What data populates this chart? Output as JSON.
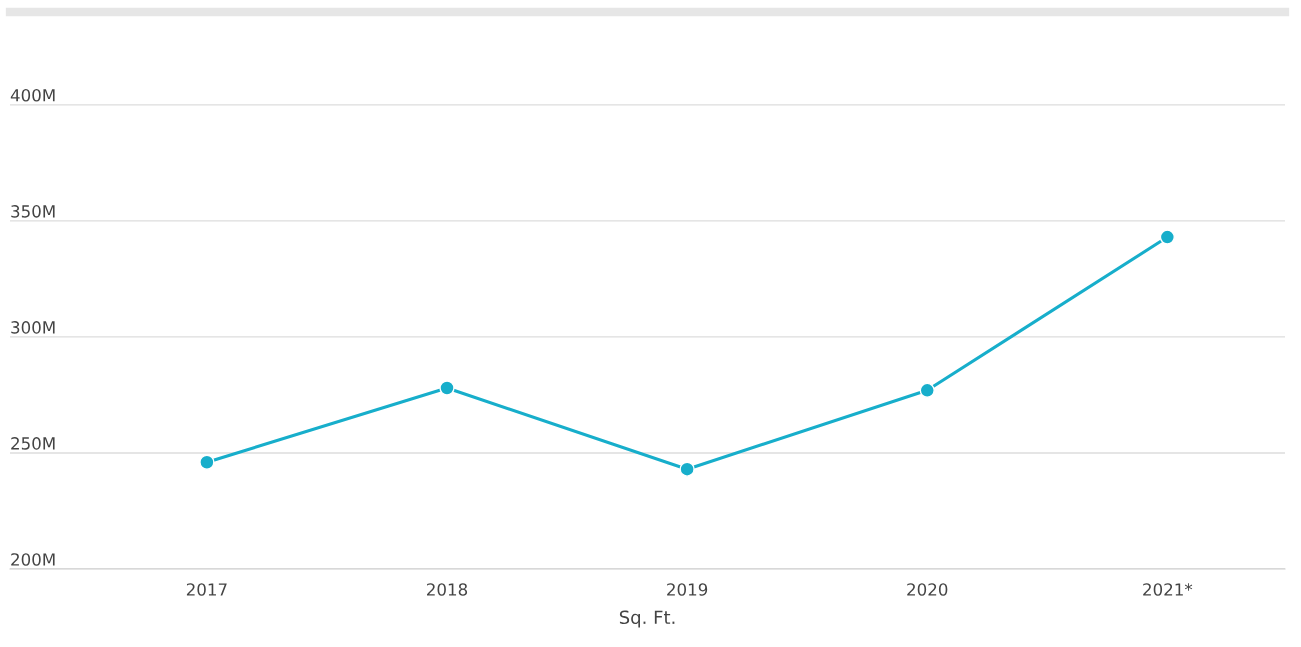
{
  "chart_data": {
    "type": "line",
    "xlabel": "Sq. Ft.",
    "categories": [
      "2017",
      "2018",
      "2019",
      "2020",
      "2021*"
    ],
    "series": [
      {
        "color": "#17aecb",
        "values": [
          246,
          278,
          243,
          277,
          343
        ]
      }
    ],
    "ylim": [
      200,
      440
    ],
    "yticks": [
      {
        "value": 200,
        "label": "200M"
      },
      {
        "value": 250,
        "label": "250M"
      },
      {
        "value": 300,
        "label": "300M"
      },
      {
        "value": 350,
        "label": "350M"
      },
      {
        "value": 400,
        "label": "400M"
      }
    ],
    "grid": "y",
    "marker": "circle",
    "line_style": "solid"
  }
}
